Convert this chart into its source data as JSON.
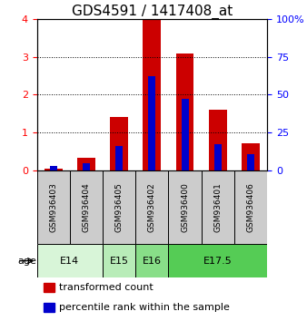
{
  "title": "GDS4591 / 1417408_at",
  "samples": [
    "GSM936403",
    "GSM936404",
    "GSM936405",
    "GSM936402",
    "GSM936400",
    "GSM936401",
    "GSM936406"
  ],
  "transformed_count": [
    0.05,
    0.33,
    1.42,
    4.0,
    3.1,
    1.6,
    0.72
  ],
  "percentile_rank_scaled": [
    0.12,
    0.18,
    0.63,
    2.5,
    1.9,
    0.7,
    0.42
  ],
  "age_groups": [
    {
      "label": "E14",
      "start": 0,
      "end": 2,
      "color": "#d8f5d8"
    },
    {
      "label": "E15",
      "start": 2,
      "end": 3,
      "color": "#b8ecb8"
    },
    {
      "label": "E16",
      "start": 3,
      "end": 4,
      "color": "#88de88"
    },
    {
      "label": "E17.5",
      "start": 4,
      "end": 7,
      "color": "#55cc55"
    }
  ],
  "ylim_left": [
    0,
    4
  ],
  "ylim_right": [
    0,
    100
  ],
  "yticks_left": [
    0,
    1,
    2,
    3,
    4
  ],
  "yticks_right": [
    0,
    25,
    50,
    75,
    100
  ],
  "bar_color_red": "#cc0000",
  "bar_color_blue": "#0000cc",
  "bar_width": 0.55,
  "blue_bar_width": 0.22,
  "bg_color_sample": "#cccccc",
  "legend_red": "transformed count",
  "legend_blue": "percentile rank within the sample",
  "age_label": "age",
  "title_fontsize": 11,
  "tick_fontsize": 8,
  "label_fontsize": 8,
  "sample_fontsize": 6.5
}
